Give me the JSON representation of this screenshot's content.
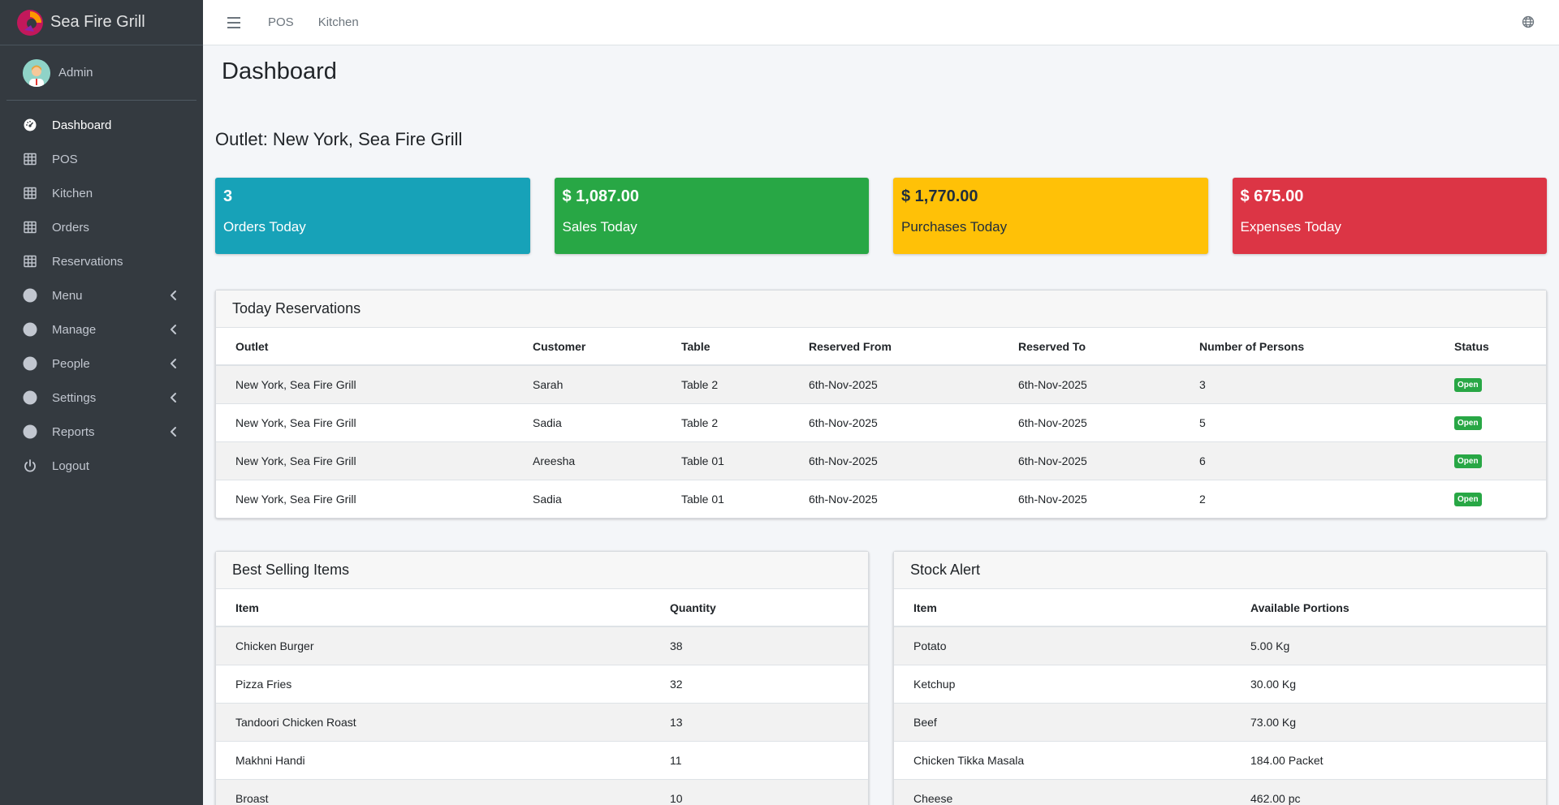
{
  "brand": {
    "name": "Sea Fire Grill"
  },
  "user": {
    "name": "Admin"
  },
  "sidebar": {
    "items": [
      {
        "label": "Dashboard",
        "icon": "tachometer-icon",
        "active": true,
        "has_arrow": false
      },
      {
        "label": "POS",
        "icon": "table-icon",
        "active": false,
        "has_arrow": false
      },
      {
        "label": "Kitchen",
        "icon": "table-icon",
        "active": false,
        "has_arrow": false
      },
      {
        "label": "Orders",
        "icon": "table-icon",
        "active": false,
        "has_arrow": false
      },
      {
        "label": "Reservations",
        "icon": "table-icon",
        "active": false,
        "has_arrow": false
      },
      {
        "label": "Menu",
        "icon": "circle-icon",
        "active": false,
        "has_arrow": true
      },
      {
        "label": "Manage",
        "icon": "circle-icon",
        "active": false,
        "has_arrow": true
      },
      {
        "label": "People",
        "icon": "circle-icon",
        "active": false,
        "has_arrow": true
      },
      {
        "label": "Settings",
        "icon": "circle-icon",
        "active": false,
        "has_arrow": true
      },
      {
        "label": "Reports",
        "icon": "circle-icon",
        "active": false,
        "has_arrow": true
      },
      {
        "label": "Logout",
        "icon": "power-icon",
        "active": false,
        "has_arrow": false
      }
    ]
  },
  "topbar": {
    "links": [
      "POS",
      "Kitchen"
    ]
  },
  "page": {
    "title": "Dashboard",
    "outlet_title": "Outlet: New York, Sea Fire Grill"
  },
  "stats": [
    {
      "value": "3",
      "label": "Orders Today",
      "color": "#17a2b8"
    },
    {
      "value": "$ 1,087.00",
      "label": "Sales Today",
      "color": "#28a745"
    },
    {
      "value": "$ 1,770.00",
      "label": "Purchases Today",
      "color": "#ffc107"
    },
    {
      "value": "$ 675.00",
      "label": "Expenses Today",
      "color": "#dc3545"
    }
  ],
  "reservations": {
    "title": "Today Reservations",
    "columns": [
      "Outlet",
      "Customer",
      "Table",
      "Reserved From",
      "Reserved To",
      "Number of Persons",
      "Status"
    ],
    "rows": [
      [
        "New York, Sea Fire Grill",
        "Sarah",
        "Table 2",
        "6th-Nov-2025",
        "6th-Nov-2025",
        "3",
        "Open"
      ],
      [
        "New York, Sea Fire Grill",
        "Sadia",
        "Table 2",
        "6th-Nov-2025",
        "6th-Nov-2025",
        "5",
        "Open"
      ],
      [
        "New York, Sea Fire Grill",
        "Areesha",
        "Table 01",
        "6th-Nov-2025",
        "6th-Nov-2025",
        "6",
        "Open"
      ],
      [
        "New York, Sea Fire Grill",
        "Sadia",
        "Table 01",
        "6th-Nov-2025",
        "6th-Nov-2025",
        "2",
        "Open"
      ]
    ]
  },
  "best_selling": {
    "title": "Best Selling Items",
    "columns": [
      "Item",
      "Quantity"
    ],
    "rows": [
      [
        "Chicken Burger",
        "38"
      ],
      [
        "Pizza Fries",
        "32"
      ],
      [
        "Tandoori Chicken Roast",
        "13"
      ],
      [
        "Makhni Handi",
        "11"
      ],
      [
        "Broast",
        "10"
      ]
    ]
  },
  "stock_alert": {
    "title": "Stock Alert",
    "columns": [
      "Item",
      "Available Portions"
    ],
    "rows": [
      [
        "Potato",
        "5.00 Kg"
      ],
      [
        "Ketchup",
        "30.00 Kg"
      ],
      [
        "Beef",
        "73.00 Kg"
      ],
      [
        "Chicken Tikka Masala",
        "184.00 Packet"
      ],
      [
        "Cheese",
        "462.00 pc"
      ]
    ]
  }
}
